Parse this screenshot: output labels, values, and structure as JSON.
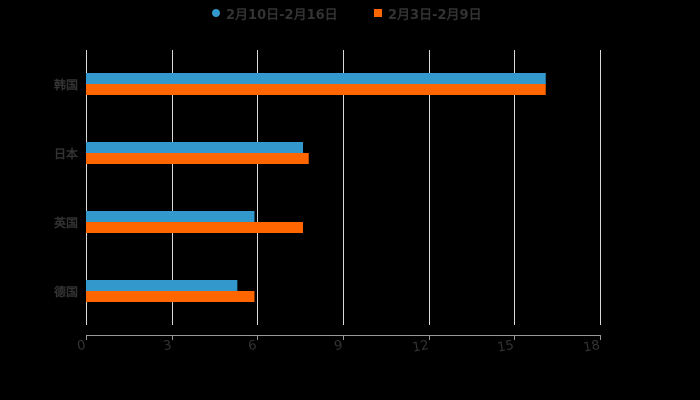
{
  "chart_data": {
    "type": "bar",
    "orientation": "horizontal",
    "title": "",
    "xlabel": "",
    "ylabel": "",
    "categories": [
      "韩国",
      "日本",
      "英国",
      "德国"
    ],
    "series": [
      {
        "name": "2月10日-2月16日",
        "color": "#3399cc",
        "values": [
          16.1,
          7.6,
          5.9,
          5.3
        ]
      },
      {
        "name": "2月3日-2月9日",
        "color": "#ff6600",
        "values": [
          16.1,
          7.8,
          7.6,
          5.9
        ]
      }
    ],
    "xlim": [
      0,
      18
    ],
    "xticks": [
      "0",
      "3",
      "6",
      "9",
      "12",
      "15",
      "18"
    ],
    "grid": true,
    "legend_position": "top"
  },
  "legend": {
    "items": [
      {
        "label": "2月10日-2月16日",
        "color": "#3399cc",
        "marker": "circle"
      },
      {
        "label": "2月3日-2月9日",
        "color": "#ff6600",
        "marker": "square"
      }
    ]
  },
  "colors": {
    "background": "#000000",
    "grid": "#d9d9d9",
    "axis": "#999999",
    "text": "#333333"
  }
}
